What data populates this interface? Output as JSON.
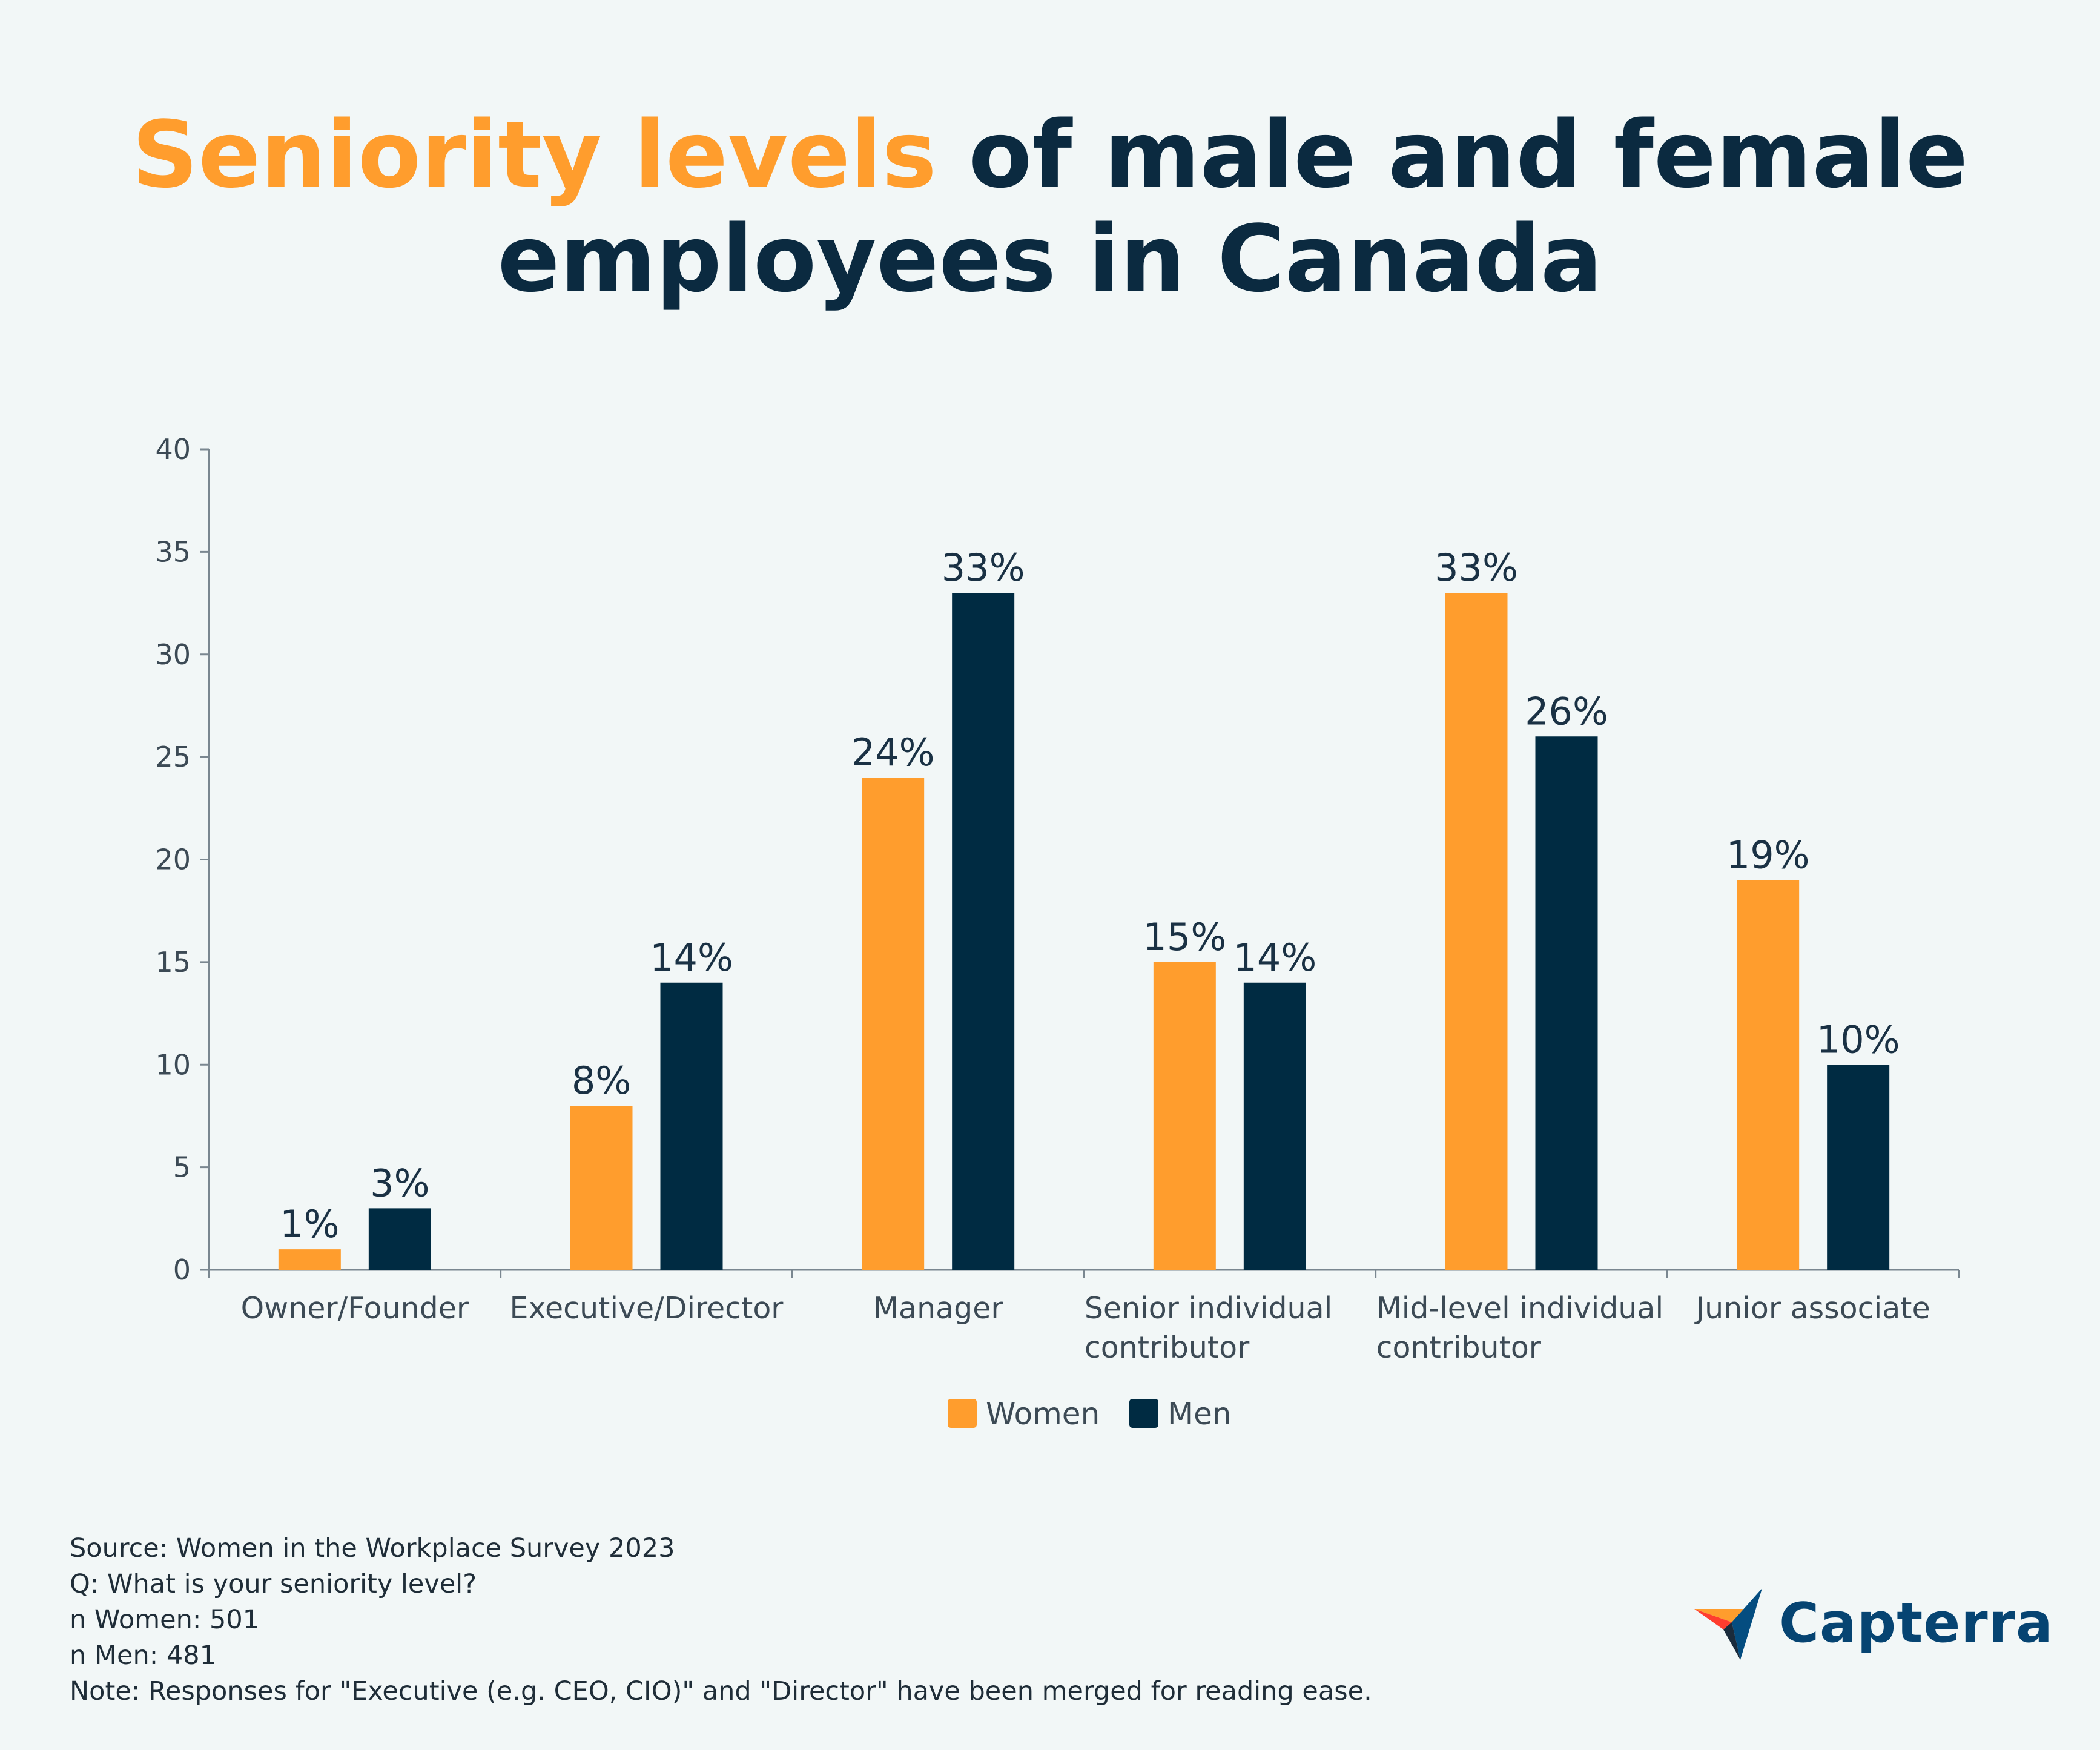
{
  "title": {
    "highlight": "Seniority levels",
    "line1_rest": " of male and female",
    "line2": "employees in Canada"
  },
  "colors": {
    "women": "#ff9d2d",
    "men": "#002b42",
    "title_accent": "#ff9d2d",
    "title_main": "#0b2a40",
    "axis": "#7a8790"
  },
  "chart_data": {
    "type": "bar",
    "title": "Seniority levels of male and female employees in Canada",
    "categories": [
      [
        "Owner/Founder"
      ],
      [
        "Executive/Director"
      ],
      [
        "Manager"
      ],
      [
        "Senior individual",
        "contributor"
      ],
      [
        "Mid-level individual",
        "contributor"
      ],
      [
        "Junior associate"
      ]
    ],
    "series": [
      {
        "name": "Women",
        "values": [
          1,
          8,
          24,
          15,
          33,
          19
        ],
        "labels": [
          "1%",
          "8%",
          "24%",
          "15%",
          "33%",
          "19%"
        ]
      },
      {
        "name": "Men",
        "values": [
          3,
          14,
          33,
          14,
          26,
          10
        ],
        "labels": [
          "3%",
          "14%",
          "33%",
          "14%",
          "26%",
          "10%"
        ]
      }
    ],
    "ylim": [
      0,
      40
    ],
    "yticks": [
      "0",
      "5",
      "10",
      "15",
      "20",
      "25",
      "30",
      "35",
      "40"
    ],
    "xlabel": "",
    "ylabel": "",
    "legend": "bottom-center"
  },
  "notes": [
    "Source: Women in the Workplace Survey 2023",
    "Q: What is your seniority level?",
    "n Women: 501",
    "n Men: 481",
    "Note: Responses for \"Executive (e.g. CEO, CIO)\" and \"Director\" have been merged for reading ease."
  ],
  "logo": {
    "text": "Capterra"
  }
}
